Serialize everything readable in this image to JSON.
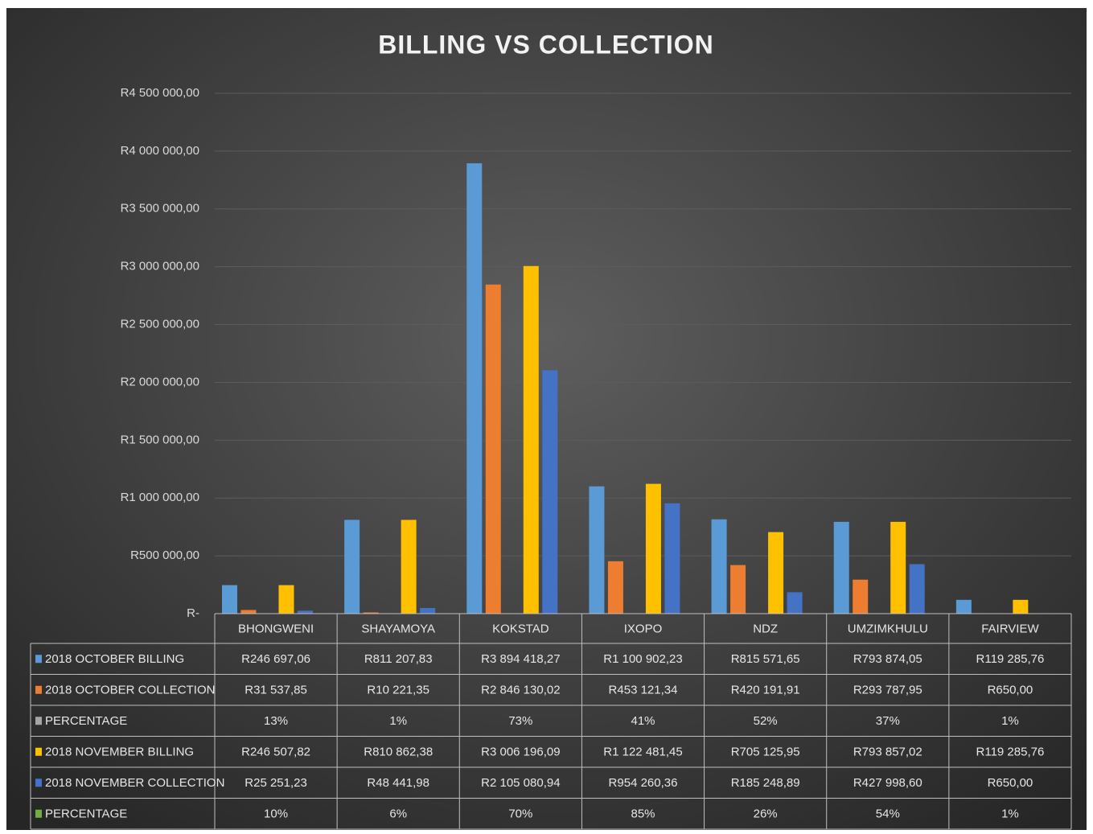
{
  "chart_data": {
    "type": "bar",
    "title": "BILLING VS COLLECTION",
    "categories": [
      "BHONGWENI",
      "SHAYAMOYA",
      "KOKSTAD",
      "IXOPO",
      "NDZ",
      "UMZIMKHULU",
      "FAIRVIEW"
    ],
    "series": [
      {
        "name": "2018 OCTOBER BILLING",
        "color": "#5b9bd5",
        "values": [
          246697.06,
          811207.83,
          3894418.27,
          1100902.23,
          815571.65,
          793874.05,
          119285.76
        ],
        "value_labels": [
          "R246 697,06",
          "R811 207,83",
          "R3 894 418,27",
          "R1 100 902,23",
          "R815 571,65",
          "R793 874,05",
          "R119 285,76"
        ]
      },
      {
        "name": "2018 OCTOBER COLLECTION",
        "color": "#ed7d31",
        "values": [
          31537.85,
          10221.35,
          2846130.02,
          453121.34,
          420191.91,
          293787.95,
          650.0
        ],
        "value_labels": [
          "R31 537,85",
          "R10 221,35",
          "R2 846 130,02",
          "R453 121,34",
          "R420 191,91",
          "R293 787,95",
          "R650,00"
        ]
      },
      {
        "name": "PERCENTAGE",
        "color": "#a5a5a5",
        "values": [
          13,
          1,
          73,
          41,
          52,
          37,
          1
        ],
        "value_labels": [
          "13%",
          "1%",
          "73%",
          "41%",
          "52%",
          "37%",
          "1%"
        ]
      },
      {
        "name": "2018 NOVEMBER BILLING",
        "color": "#ffc000",
        "values": [
          246507.82,
          810862.38,
          3006196.09,
          1122481.45,
          705125.95,
          793857.02,
          119285.76
        ],
        "value_labels": [
          "R246 507,82",
          "R810 862,38",
          "R3 006 196,09",
          "R1 122 481,45",
          "R705 125,95",
          "R793 857,02",
          "R119 285,76"
        ]
      },
      {
        "name": "2018 NOVEMBER COLLECTION",
        "color": "#4472c4",
        "values": [
          25251.23,
          48441.98,
          2105080.94,
          954260.36,
          185248.89,
          427998.6,
          650.0
        ],
        "value_labels": [
          "R25 251,23",
          "R48 441,98",
          "R2 105 080,94",
          "R954 260,36",
          "R185 248,89",
          "R427 998,60",
          "R650,00"
        ]
      },
      {
        "name": "PERCENTAGE",
        "color": "#70ad47",
        "values": [
          10,
          6,
          70,
          85,
          26,
          54,
          1
        ],
        "value_labels": [
          "10%",
          "6%",
          "70%",
          "85%",
          "26%",
          "54%",
          "1%"
        ]
      }
    ],
    "ylim": [
      0,
      4500000
    ],
    "yticks": [
      {
        "value": 0,
        "label": "R-"
      },
      {
        "value": 500000,
        "label": "R500 000,00"
      },
      {
        "value": 1000000,
        "label": "R1 000 000,00"
      },
      {
        "value": 1500000,
        "label": "R1 500 000,00"
      },
      {
        "value": 2000000,
        "label": "R2 000 000,00"
      },
      {
        "value": 2500000,
        "label": "R2 500 000,00"
      },
      {
        "value": 3000000,
        "label": "R3 000 000,00"
      },
      {
        "value": 3500000,
        "label": "R3 500 000,00"
      },
      {
        "value": 4000000,
        "label": "R4 000 000,00"
      },
      {
        "value": 4500000,
        "label": "R4 500 000,00"
      }
    ],
    "grid": true
  }
}
